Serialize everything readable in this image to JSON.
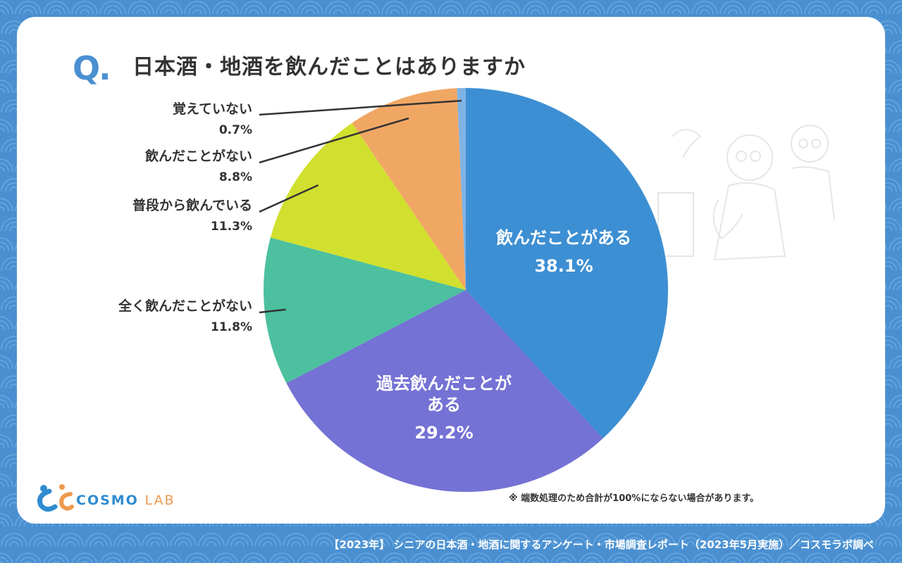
{
  "question": {
    "mark": "Q.",
    "text": "日本酒・地酒を飲んだことはありますか"
  },
  "chart_data": {
    "type": "pie",
    "slices": [
      {
        "label": "飲んだことがある",
        "value": 38.1,
        "value_text": "38.1%",
        "color": "#3d8fd3"
      },
      {
        "label": "過去飲んだことがある",
        "label_lines": [
          "過去飲んだことが",
          "ある"
        ],
        "value": 29.2,
        "value_text": "29.2%",
        "color": "#7472d4"
      },
      {
        "label": "全く飲んだことがない",
        "value": 11.8,
        "value_text": "11.8%",
        "color": "#4cc09f"
      },
      {
        "label": "普段から飲んでいる",
        "value": 11.3,
        "value_text": "11.3%",
        "color": "#d1e02e"
      },
      {
        "label": "飲んだことがない",
        "value": 8.8,
        "value_text": "8.8%",
        "color": "#f1a764"
      },
      {
        "label": "覚えていない",
        "value": 0.7,
        "value_text": "0.7%",
        "color": "#7fb3e3"
      }
    ]
  },
  "note": "※ 端数処理のため合計が100%にならない場合があります。",
  "footer": "【2023年】 シニアの日本酒・地酒に関するアンケート・市場調査レポート（2023年5月実施）／コスモラボ調べ",
  "logo": {
    "main": "COSMO",
    "sub": "LAB"
  },
  "colors": {
    "background": "#4a90d1",
    "card": "#ffffff",
    "accent": "#4a90d1",
    "text": "#333333"
  }
}
